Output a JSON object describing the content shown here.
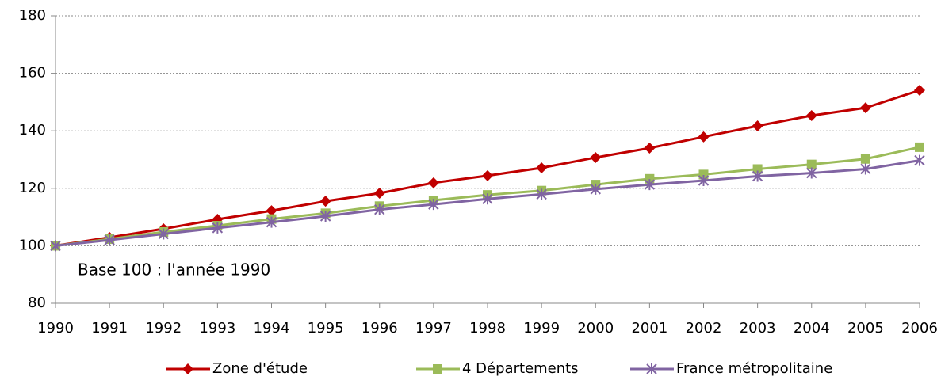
{
  "chart_data": {
    "type": "line",
    "categories": [
      "1990",
      "1991",
      "1992",
      "1993",
      "1994",
      "1995",
      "1996",
      "1997",
      "1998",
      "1999",
      "2000",
      "2001",
      "2002",
      "2003",
      "2004",
      "2005",
      "2006"
    ],
    "series": [
      {
        "name": "Zone d'étude",
        "color": "#c00000",
        "marker": "diamond",
        "values": [
          100,
          102.9,
          105.9,
          109.2,
          112.2,
          115.5,
          118.3,
          121.9,
          124.4,
          127.1,
          130.7,
          134.0,
          137.9,
          141.7,
          145.3,
          148.0,
          154.1
        ]
      },
      {
        "name": "4 Départements",
        "color": "#9bbb59",
        "marker": "square",
        "values": [
          100,
          102.3,
          104.8,
          107.0,
          109.3,
          111.3,
          113.8,
          115.8,
          117.7,
          119.2,
          121.3,
          123.3,
          124.8,
          126.7,
          128.3,
          130.2,
          134.3
        ]
      },
      {
        "name": "France métropolitaine",
        "color": "#8064a2",
        "marker": "star",
        "values": [
          100,
          102.0,
          104.1,
          106.2,
          108.2,
          110.3,
          112.6,
          114.4,
          116.3,
          117.9,
          119.7,
          121.3,
          122.7,
          124.2,
          125.3,
          126.7,
          129.7
        ]
      }
    ],
    "annotation": "Base 100 : l'année 1990",
    "ylim": [
      80,
      180
    ],
    "yticks": [
      80,
      100,
      120,
      140,
      160,
      180
    ],
    "grid": true,
    "legend": "bottom"
  }
}
